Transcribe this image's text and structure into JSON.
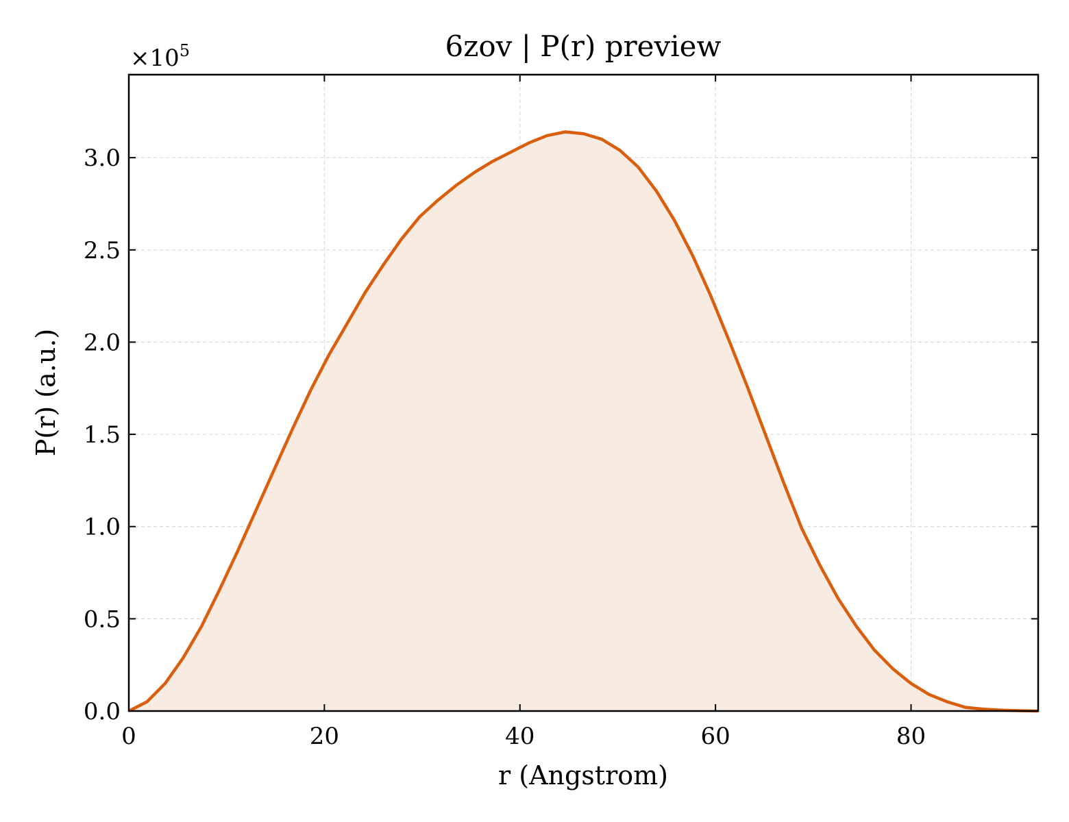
{
  "chart_data": {
    "type": "area",
    "title": "6zov | P(r) preview",
    "xlabel": "r (Angstrom)",
    "ylabel": "P(r) (a.u.)",
    "y_offset_text": "×10",
    "y_offset_exp": "5",
    "xlim": [
      0,
      93
    ],
    "ylim": [
      0,
      3.45
    ],
    "y_scale_factor": 100000,
    "xticks": [
      0,
      20,
      40,
      60,
      80
    ],
    "xtick_labels": [
      "0",
      "20",
      "40",
      "60",
      "80"
    ],
    "yticks": [
      0.0,
      0.5,
      1.0,
      1.5,
      2.0,
      2.5,
      3.0
    ],
    "ytick_labels": [
      "0.0",
      "0.5",
      "1.0",
      "1.5",
      "2.0",
      "2.5",
      "3.0"
    ],
    "grid": true,
    "line_color": "#d95f0e",
    "fill_color": "#f8ebe1",
    "series": [
      {
        "x": [
          0,
          1.86,
          3.72,
          5.58,
          7.44,
          9.3,
          11.16,
          13.02,
          14.88,
          16.74,
          18.6,
          20.46,
          22.32,
          24.18,
          26.04,
          27.9,
          29.76,
          31.62,
          33.48,
          35.34,
          37.2,
          39.06,
          40.92,
          42.78,
          44.64,
          46.5,
          48.36,
          50.22,
          52.08,
          53.94,
          55.8,
          57.66,
          59.52,
          61.38,
          63.24,
          65.1,
          66.96,
          68.82,
          70.68,
          72.54,
          74.4,
          76.26,
          78.12,
          79.98,
          81.84,
          83.7,
          85.56,
          87.42,
          89.28,
          91.14,
          93
        ],
        "y": [
          0.0,
          0.05,
          0.15,
          0.29,
          0.46,
          0.66,
          0.87,
          1.09,
          1.31,
          1.53,
          1.74,
          1.93,
          2.1,
          2.27,
          2.42,
          2.56,
          2.68,
          2.77,
          2.85,
          2.92,
          2.98,
          3.03,
          3.08,
          3.12,
          3.14,
          3.13,
          3.1,
          3.04,
          2.95,
          2.82,
          2.66,
          2.47,
          2.25,
          2.01,
          1.76,
          1.5,
          1.24,
          0.99,
          0.79,
          0.61,
          0.46,
          0.33,
          0.23,
          0.15,
          0.09,
          0.05,
          0.02,
          0.01,
          0.005,
          0.002,
          0.0
        ]
      }
    ]
  }
}
